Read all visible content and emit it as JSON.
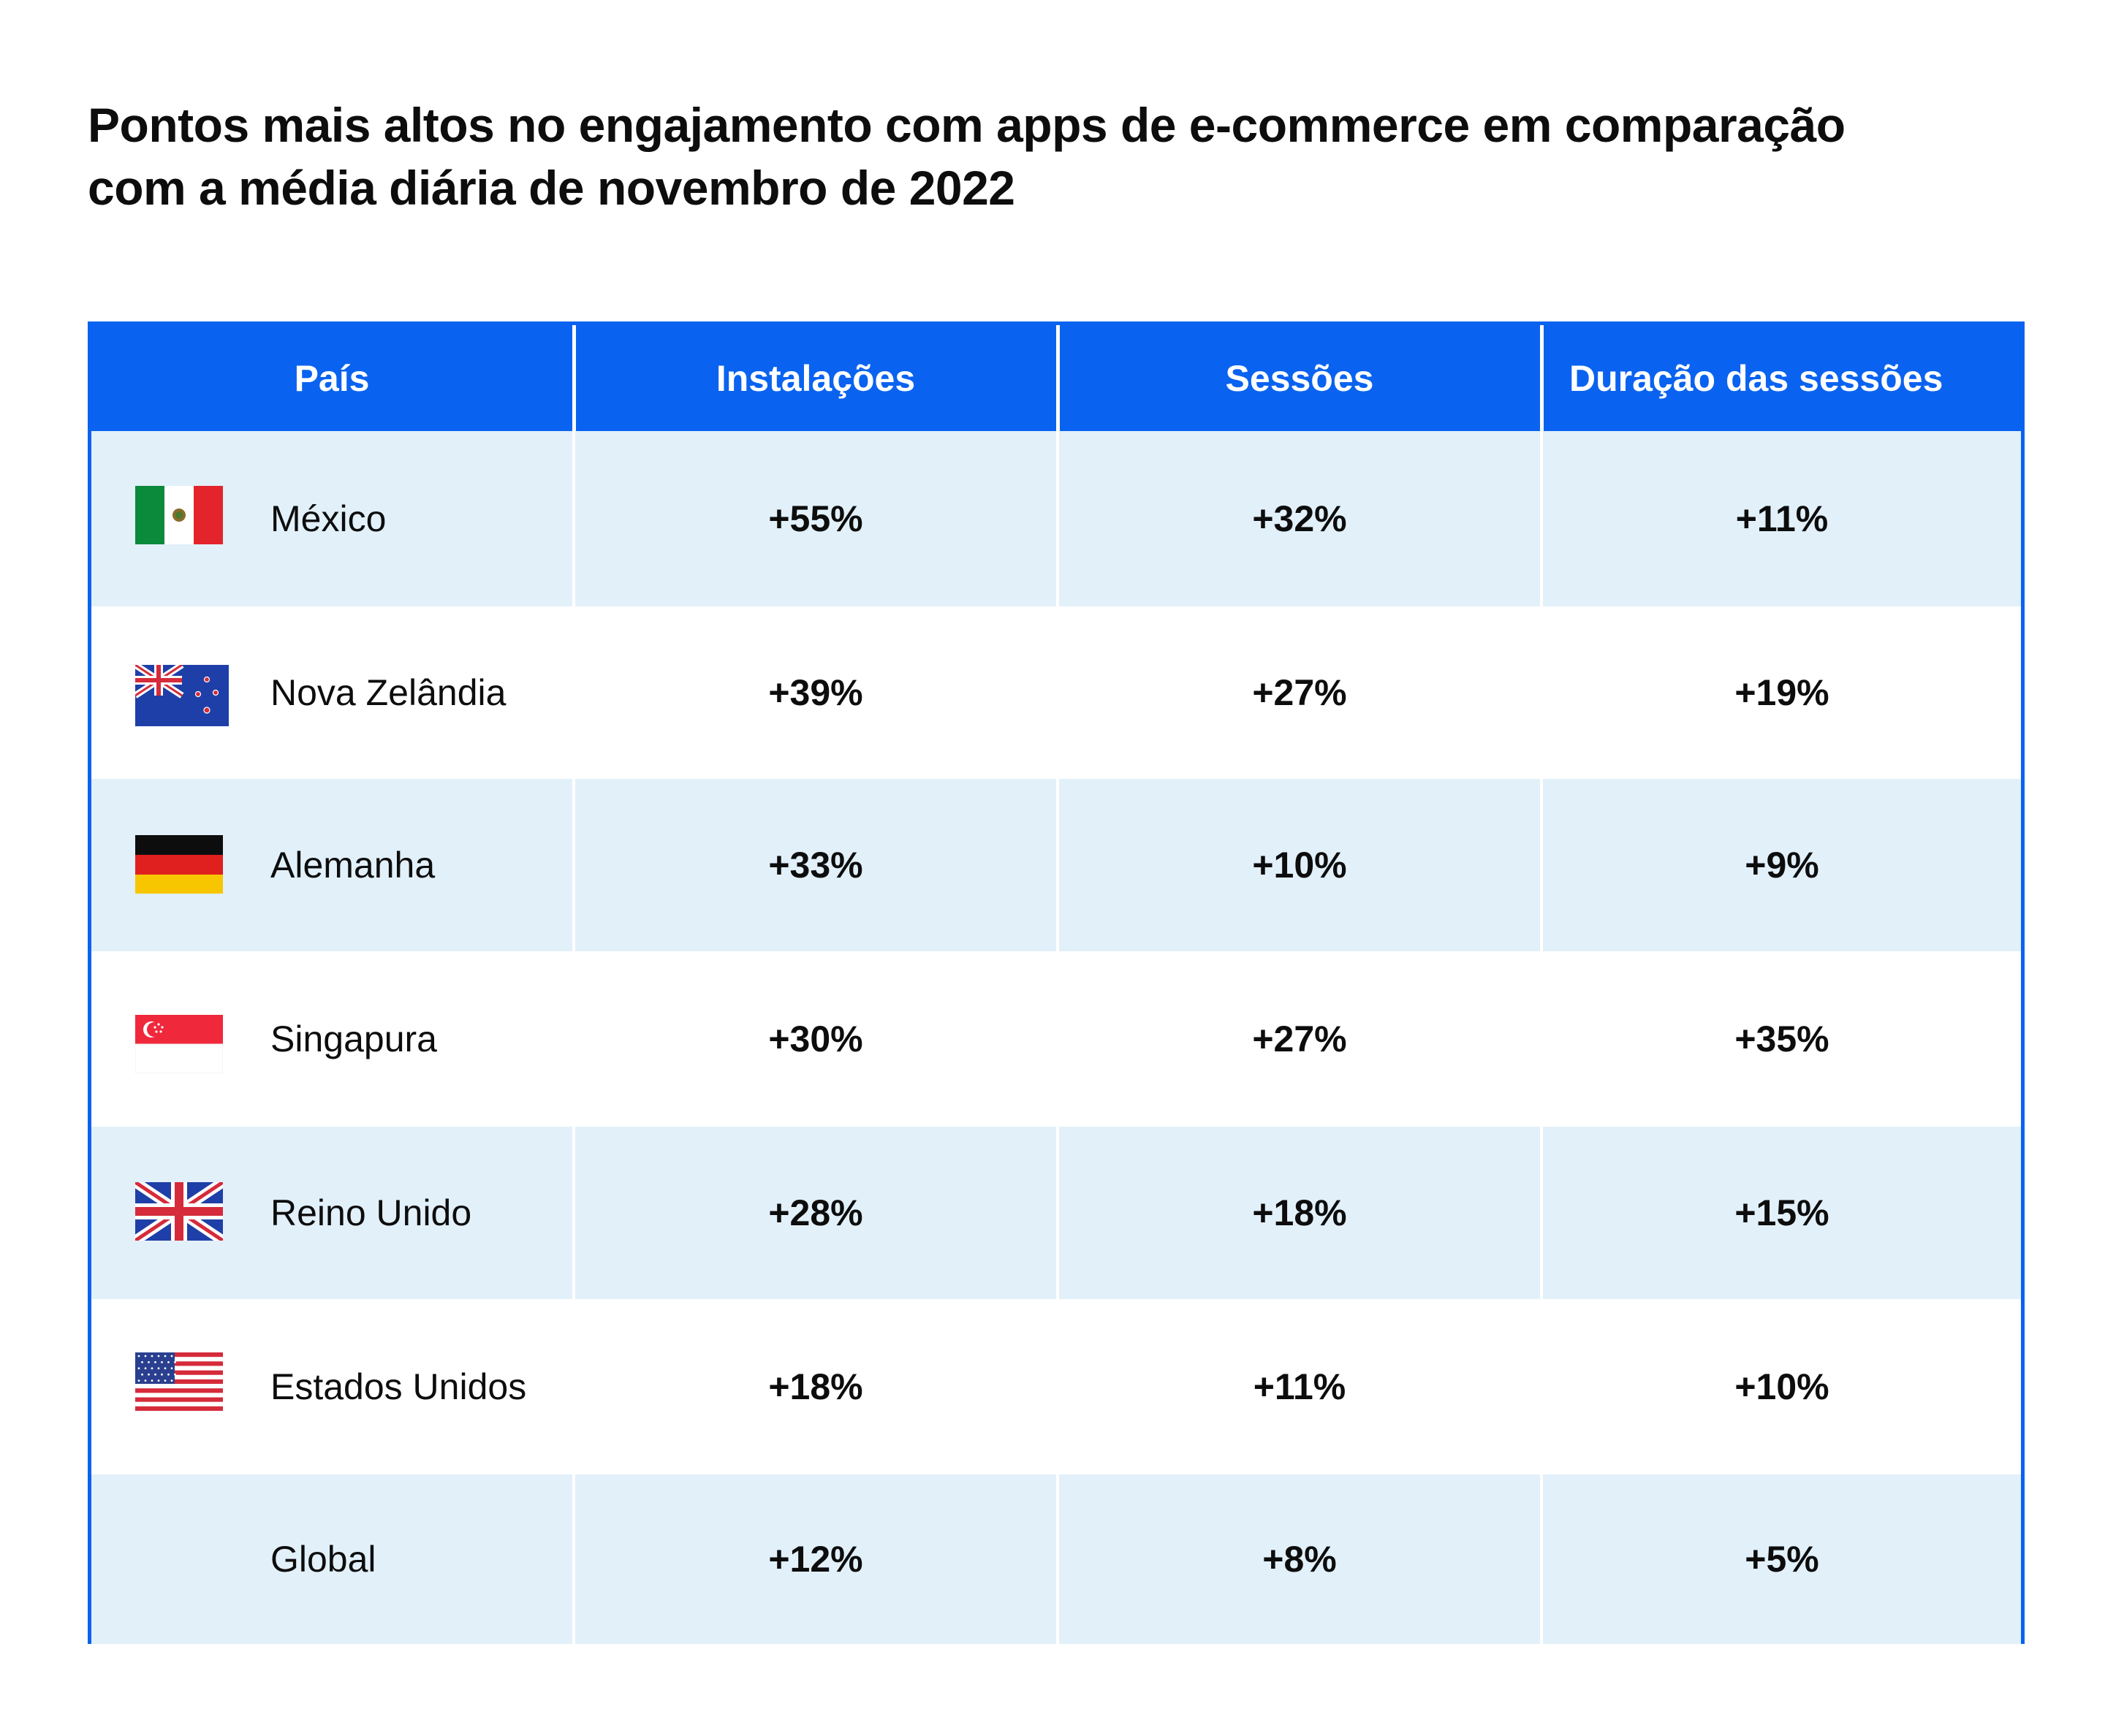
{
  "title_lines": [
    "Pontos mais altos no engajamento com apps de e-commerce em comparação",
    "com a média diária de novembro de 2022"
  ],
  "colors": {
    "header_bg": "#0a63f0",
    "row_shaded": "#e2f0fa",
    "row_plain": "#ffffff"
  },
  "chart_data": {
    "type": "table",
    "title": "Pontos mais altos no engajamento com apps de e-commerce em comparação com a média diária de novembro de 2022",
    "columns": [
      "País",
      "Instalações",
      "Sessões",
      "Duração das sessões"
    ],
    "rows": [
      {
        "country": "México",
        "flag": "mexico-flag-icon",
        "installs": "+55%",
        "sessions": "+32%",
        "duration": "+11%"
      },
      {
        "country": "Nova Zelândia",
        "flag": "new-zealand-flag-icon",
        "installs": "+39%",
        "sessions": "+27%",
        "duration": "+19%"
      },
      {
        "country": "Alemanha",
        "flag": "germany-flag-icon",
        "installs": "+33%",
        "sessions": "+10%",
        "duration": "+9%"
      },
      {
        "country": "Singapura",
        "flag": "singapore-flag-icon",
        "installs": "+30%",
        "sessions": "+27%",
        "duration": "+35%"
      },
      {
        "country": "Reino Unido",
        "flag": "uk-flag-icon",
        "installs": "+28%",
        "sessions": "+18%",
        "duration": "+15%"
      },
      {
        "country": "Estados Unidos",
        "flag": "usa-flag-icon",
        "installs": "+18%",
        "sessions": "+11%",
        "duration": "+10%"
      },
      {
        "country": "Global",
        "flag": "",
        "installs": "+12%",
        "sessions": "+8%",
        "duration": "+5%"
      }
    ]
  }
}
